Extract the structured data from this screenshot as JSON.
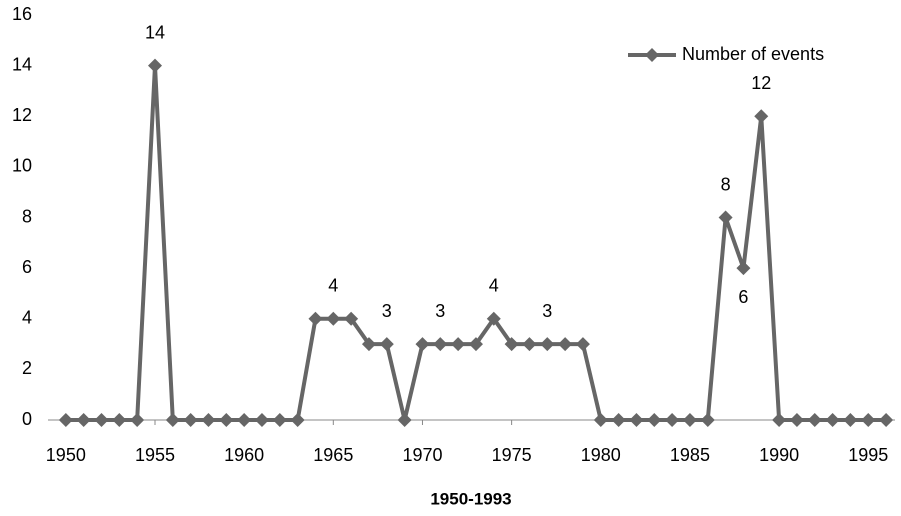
{
  "chart_data": {
    "type": "line",
    "x_label": "1950-1993",
    "x": [
      1950,
      1951,
      1952,
      1953,
      1954,
      1955,
      1956,
      1957,
      1958,
      1959,
      1960,
      1961,
      1962,
      1963,
      1964,
      1965,
      1966,
      1967,
      1968,
      1969,
      1970,
      1971,
      1972,
      1973,
      1974,
      1975,
      1976,
      1977,
      1978,
      1979,
      1980,
      1981,
      1982,
      1983,
      1984,
      1985,
      1986,
      1987,
      1988,
      1989,
      1990,
      1991,
      1992,
      1993,
      1994,
      1995,
      1996
    ],
    "series": [
      {
        "name": "Number of events",
        "color": "#666666",
        "values": [
          0,
          0,
          0,
          0,
          0,
          14,
          0,
          0,
          0,
          0,
          0,
          0,
          0,
          0,
          4,
          4,
          4,
          3,
          3,
          0,
          3,
          3,
          3,
          3,
          4,
          3,
          3,
          3,
          3,
          3,
          0,
          0,
          0,
          0,
          0,
          0,
          0,
          8,
          6,
          12,
          0,
          0,
          0,
          0,
          0,
          0,
          0
        ],
        "value_labels": [
          null,
          null,
          null,
          null,
          null,
          "14",
          null,
          null,
          null,
          null,
          null,
          null,
          null,
          null,
          null,
          "4",
          null,
          null,
          "3",
          null,
          null,
          "3",
          null,
          null,
          "4",
          null,
          null,
          "3",
          null,
          null,
          null,
          null,
          null,
          null,
          null,
          null,
          null,
          "8",
          "6",
          "12",
          null,
          null,
          null,
          null,
          null,
          null,
          null
        ]
      }
    ],
    "xlim": [
      1949,
      1996.5
    ],
    "xticks": [
      1950,
      1955,
      1960,
      1965,
      1970,
      1975,
      1980,
      1985,
      1990,
      1995
    ],
    "ylim": [
      0,
      16
    ],
    "yticks": [
      0,
      2,
      4,
      6,
      8,
      10,
      12,
      14,
      16
    ],
    "grid": false,
    "legend": "top-right"
  }
}
